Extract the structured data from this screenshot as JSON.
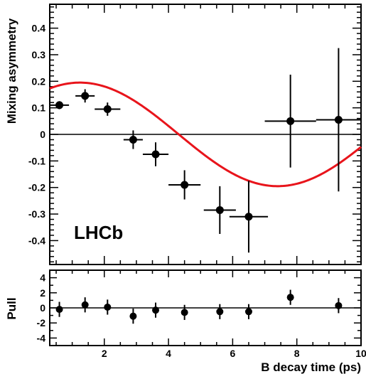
{
  "chart_data": [
    {
      "type": "scatter",
      "ylabel": "Mixing asymmetry",
      "annotation": "LHCb",
      "xlim": [
        0.3,
        10
      ],
      "ylim": [
        -0.49,
        0.49
      ],
      "y_ticks": [
        -0.4,
        -0.3,
        -0.2,
        -0.1,
        0,
        0.1,
        0.2,
        0.3,
        0.4
      ],
      "y_tick_labels": [
        "-0.4",
        "-0.3",
        "-0.2",
        "-0.1",
        "0",
        "0.1",
        "0.2",
        "0.3",
        "0.4"
      ],
      "series": [
        {
          "kind": "points-with-errors",
          "x": [
            0.6,
            1.4,
            2.1,
            2.9,
            3.6,
            4.5,
            5.6,
            6.5,
            7.8,
            9.3
          ],
          "y": [
            0.11,
            0.145,
            0.095,
            -0.02,
            -0.075,
            -0.19,
            -0.285,
            -0.31,
            0.05,
            0.055
          ],
          "xerr": [
            0.3,
            0.3,
            0.4,
            0.3,
            0.4,
            0.5,
            0.5,
            0.6,
            0.8,
            0.7
          ],
          "yerr": [
            0.015,
            0.025,
            0.025,
            0.035,
            0.045,
            0.055,
            0.09,
            0.135,
            0.175,
            0.27
          ],
          "color": "#000000"
        },
        {
          "kind": "fit-curve",
          "model": "A*cos(dm*(t - t0))",
          "params": {
            "A": 0.195,
            "dm": 0.51,
            "t0": 1.24,
            "t_start": 0.3,
            "t_end": 10
          },
          "color": "#e8141b"
        }
      ],
      "reference_line_y": 0
    },
    {
      "type": "scatter",
      "xlabel": "B decay time (ps)",
      "ylabel": "Pull",
      "xlim": [
        0.3,
        10
      ],
      "ylim": [
        -5,
        5
      ],
      "x_ticks": [
        2,
        4,
        6,
        8,
        10
      ],
      "x_tick_labels": [
        "2",
        "4",
        "6",
        "8",
        "10"
      ],
      "y_ticks": [
        -4,
        -2,
        0,
        2,
        4
      ],
      "y_tick_labels": [
        "-4",
        "-2",
        "0",
        "2",
        "4"
      ],
      "series": [
        {
          "kind": "points-with-errors",
          "x": [
            0.6,
            1.4,
            2.1,
            2.9,
            3.6,
            4.5,
            5.6,
            6.5,
            7.8,
            9.3
          ],
          "y": [
            -0.2,
            0.4,
            0.1,
            -1.1,
            -0.3,
            -0.6,
            -0.5,
            -0.5,
            1.4,
            0.3
          ],
          "yerr": [
            1,
            1,
            1,
            1,
            1,
            1,
            1,
            1,
            1,
            1
          ],
          "color": "#000000"
        }
      ],
      "reference_line_y": 0
    }
  ]
}
